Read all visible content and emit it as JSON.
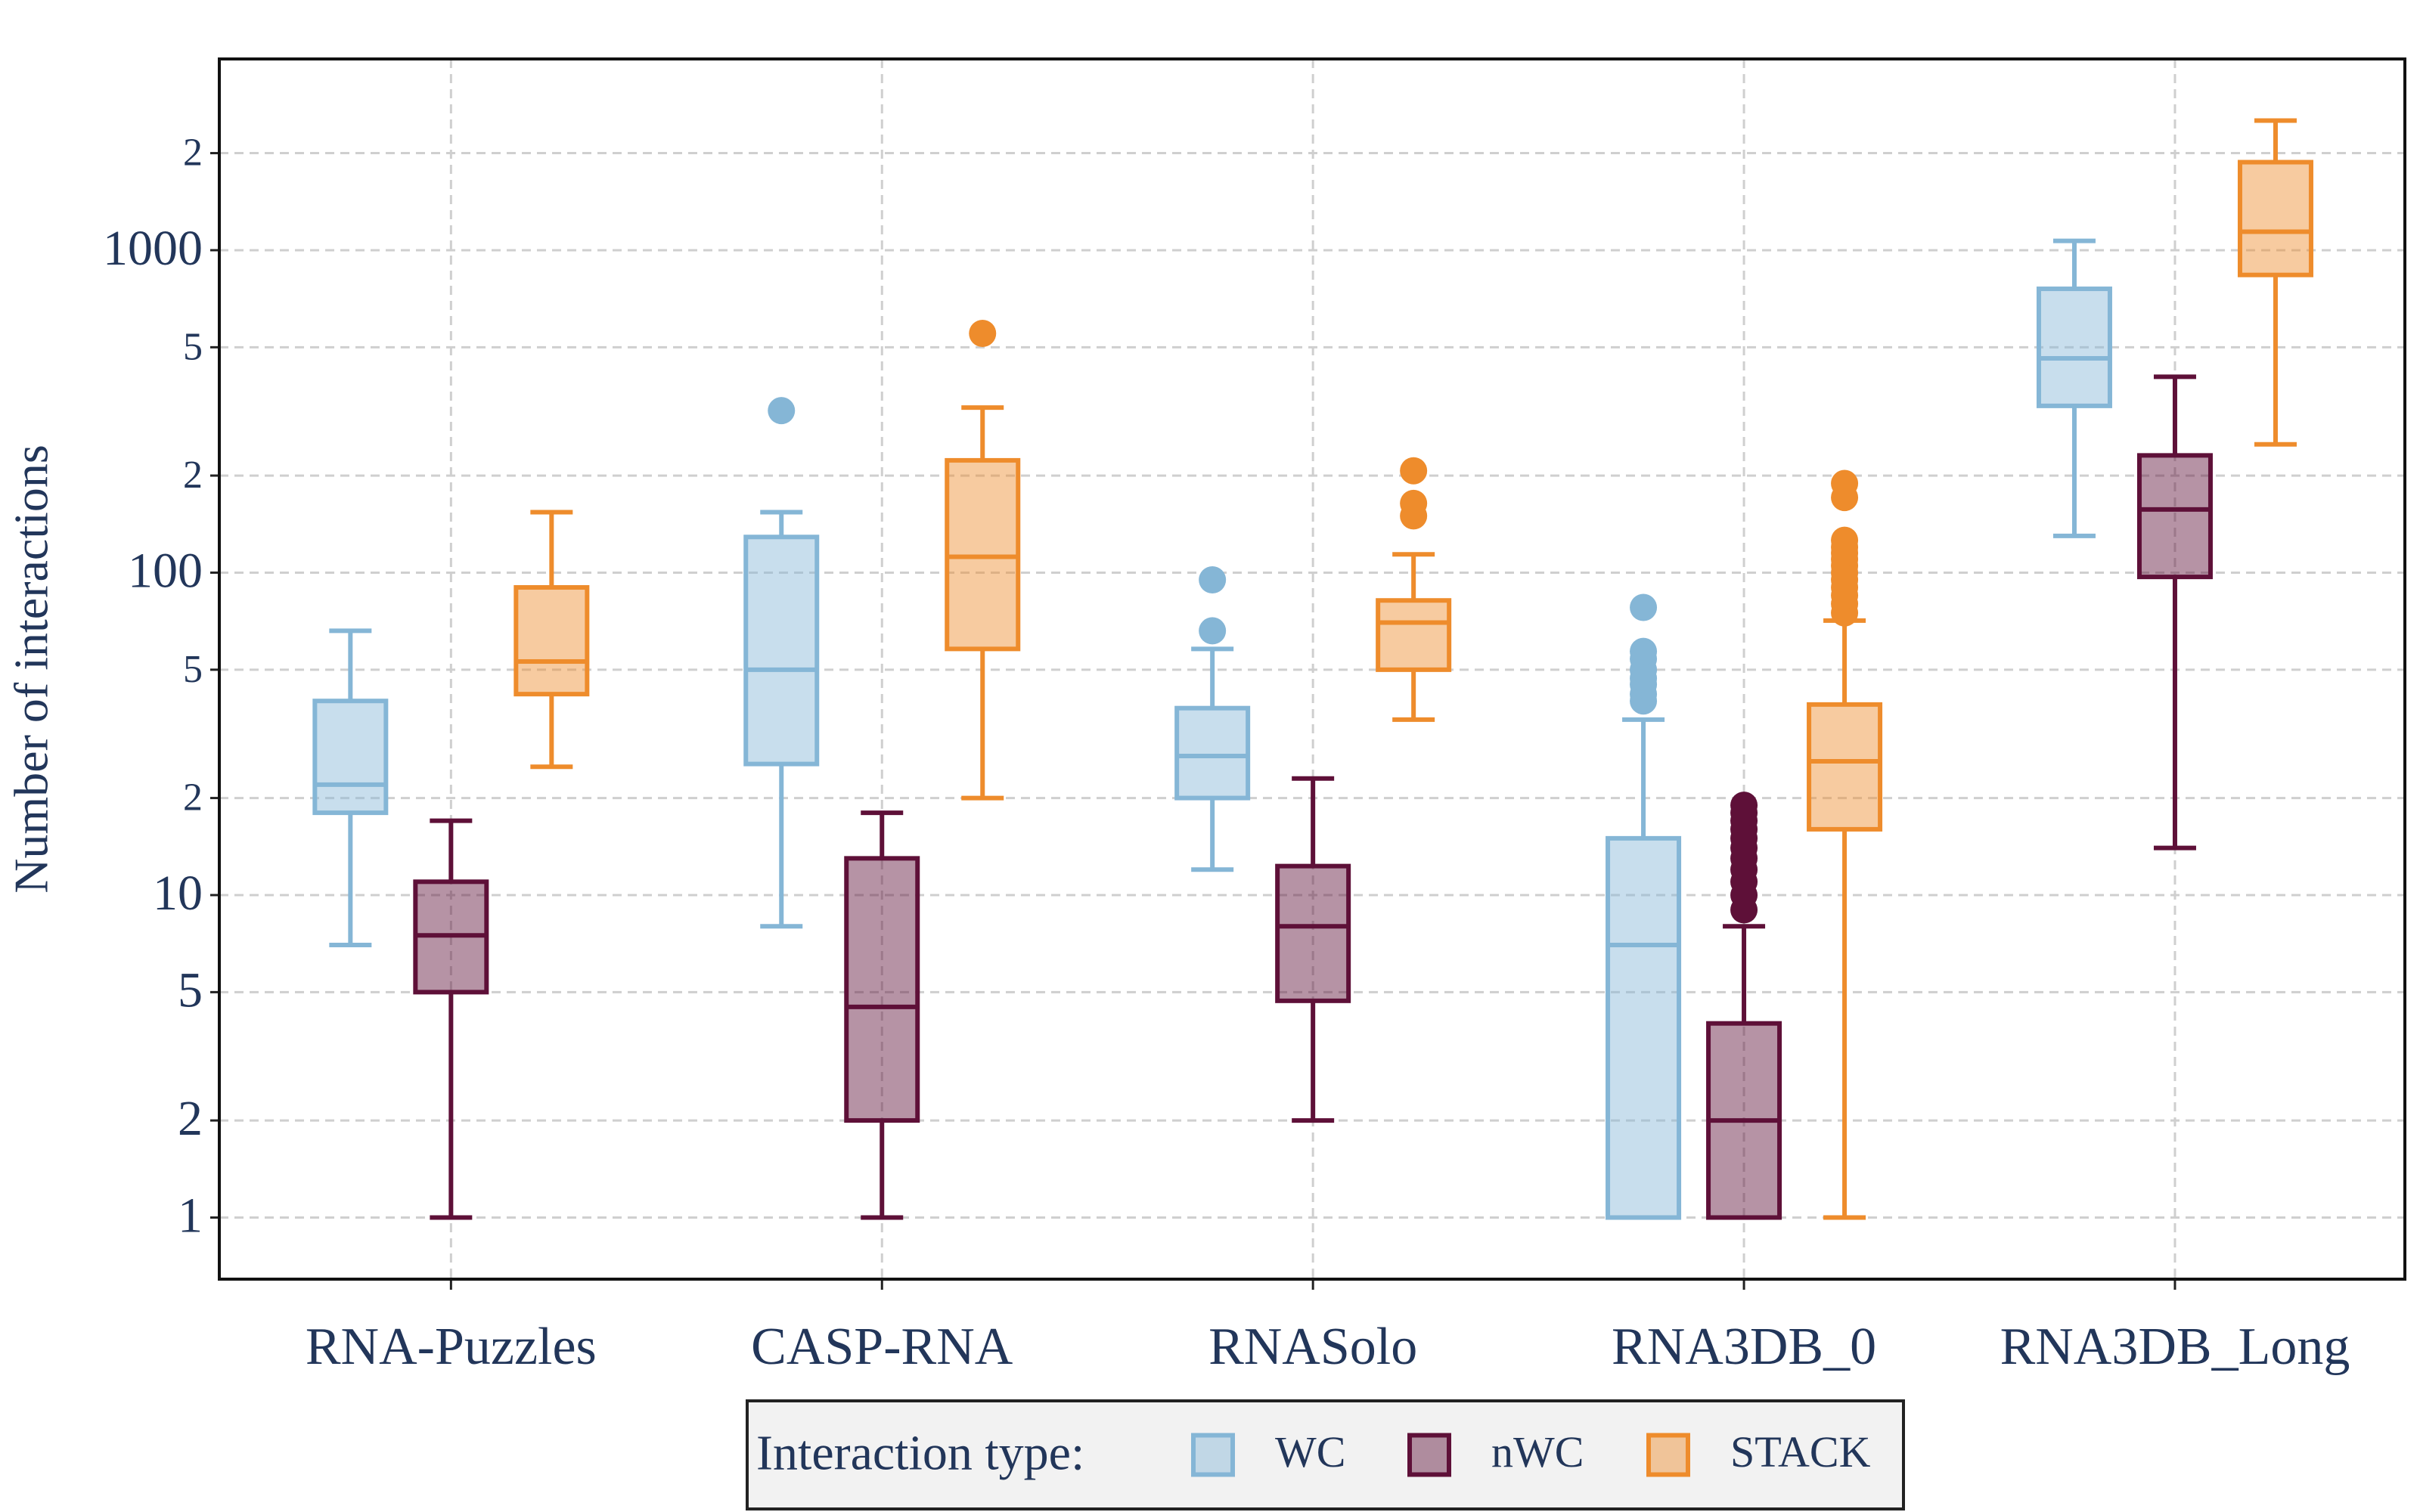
{
  "chart_data": {
    "type": "box",
    "y_label": "Number of interactions",
    "categories": [
      "RNA-Puzzles",
      "CASP-RNA",
      "RNASolo",
      "RNA3DB_0",
      "RNA3DB_Long"
    ],
    "ylim": [
      0.644,
      3918
    ],
    "y_scale": "log",
    "yticks": [
      1,
      2,
      5,
      10,
      {
        "value": 20,
        "label": "2"
      },
      {
        "value": 50,
        "label": "5"
      },
      100,
      {
        "value": 200,
        "label": "2"
      },
      {
        "value": 500,
        "label": "5"
      },
      1000,
      {
        "value": 2000,
        "label": "2"
      }
    ],
    "grid": true,
    "legend": {
      "title": "Interaction type:",
      "position": "lower center"
    },
    "series": [
      {
        "name": "WC",
        "color": "#85b6d6",
        "boxes": [
          {
            "low": 7,
            "q1": 18,
            "median": 22,
            "q3": 40,
            "high": 66,
            "outliers": []
          },
          {
            "low": 8,
            "q1": 25.5,
            "median": 50,
            "q3": 129,
            "high": 154,
            "outliers": [
              318
            ]
          },
          {
            "low": 12,
            "q1": 20,
            "median": 27,
            "q3": 38,
            "high": 58,
            "outliers": [
              66,
              95
            ]
          },
          {
            "low": 1,
            "q1": 1,
            "median": 7,
            "q3": 15,
            "high": 35,
            "outliers": [
              40,
              42,
              45,
              47,
              50,
              54,
              57,
              78
            ]
          },
          {
            "low": 130,
            "q1": 329,
            "median": 462,
            "q3": 759,
            "high": 1069,
            "outliers": []
          }
        ]
      },
      {
        "name": "nWC",
        "color": "#5e1038",
        "boxes": [
          {
            "low": 1,
            "q1": 5,
            "median": 7.5,
            "q3": 11,
            "high": 17,
            "outliers": []
          },
          {
            "low": 1,
            "q1": 2,
            "median": 4.5,
            "q3": 13,
            "high": 18,
            "outliers": []
          },
          {
            "low": 2,
            "q1": 4.7,
            "median": 8,
            "q3": 12.3,
            "high": 23,
            "outliers": []
          },
          {
            "low": 1,
            "q1": 1,
            "median": 2,
            "q3": 4,
            "high": 8,
            "outliers": [
              9,
              10,
              11,
              12,
              13,
              14,
              15,
              16,
              17,
              18,
              19
            ]
          },
          {
            "low": 14,
            "q1": 97,
            "median": 157,
            "q3": 231,
            "high": 405,
            "outliers": []
          }
        ]
      },
      {
        "name": "STACK",
        "color": "#ee8c2c",
        "boxes": [
          {
            "low": 25,
            "q1": 42,
            "median": 53,
            "q3": 90,
            "high": 154,
            "outliers": []
          },
          {
            "low": 20,
            "q1": 58,
            "median": 112,
            "q3": 223,
            "high": 325,
            "outliers": [
              552
            ]
          },
          {
            "low": 35,
            "q1": 50,
            "median": 70,
            "q3": 82,
            "high": 114,
            "outliers": [
              150,
              164,
              207
            ]
          },
          {
            "low": 1,
            "q1": 16,
            "median": 26,
            "q3": 39,
            "high": 71,
            "outliers": [
              75,
              80,
              85,
              90,
              95,
              100,
              105,
              110,
              115,
              120,
              126,
              171,
              189
            ]
          },
          {
            "low": 250,
            "q1": 838,
            "median": 1141,
            "q3": 1875,
            "high": 2523,
            "outliers": []
          }
        ]
      }
    ]
  }
}
